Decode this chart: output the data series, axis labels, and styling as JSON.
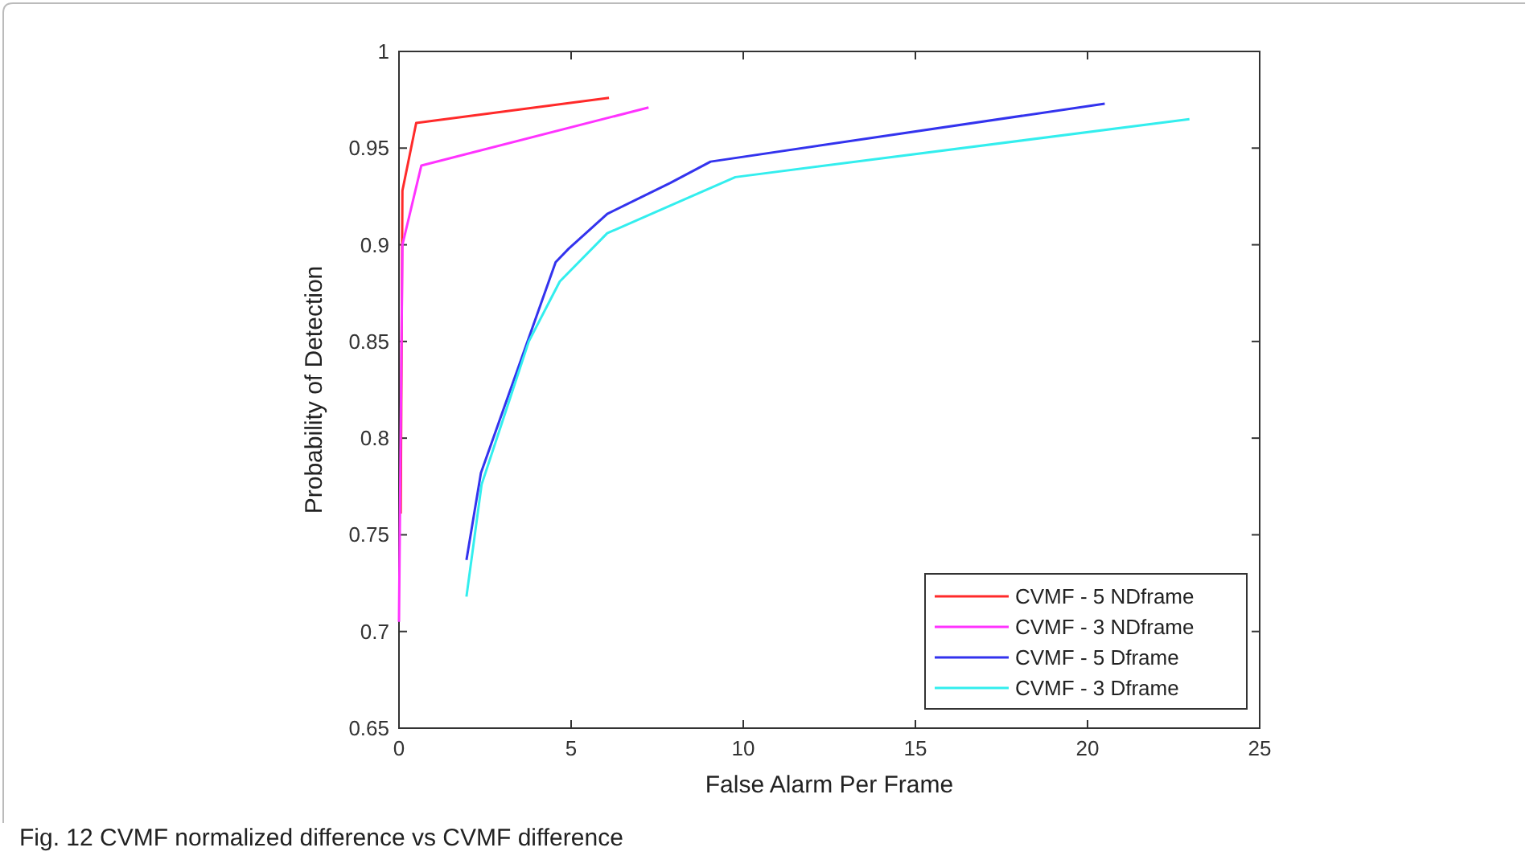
{
  "chart_data": {
    "type": "line",
    "xlabel": "False Alarm Per Frame",
    "ylabel": "Probability of Detection",
    "xlim": [
      0,
      25
    ],
    "ylim": [
      0.65,
      1
    ],
    "xticks": [
      0,
      5,
      10,
      15,
      20,
      25
    ],
    "yticks": [
      0.65,
      0.7,
      0.75,
      0.8,
      0.85,
      0.9,
      0.95,
      1
    ],
    "grid": false,
    "legend": "bottom right",
    "marker": "none",
    "line_style": "solid",
    "annotations": [
      "Fig. 12  CVMF normalized difference vs CVMF difference"
    ],
    "series": [
      {
        "name": "CVMF - 5 NDframe",
        "color": "#ff2a2a",
        "x": [
          0.05,
          0.1,
          0.5,
          6.1
        ],
        "values": [
          0.761,
          0.928,
          0.963,
          0.976
        ]
      },
      {
        "name": "CVMF - 3 NDframe",
        "color": "#ff33ff",
        "x": [
          0,
          0.1,
          0.65,
          7.25
        ],
        "values": [
          0.705,
          0.9,
          0.941,
          0.971
        ]
      },
      {
        "name": "CVMF - 5 Dframe",
        "color": "#3333ee",
        "x": [
          1.96,
          2.38,
          4.55,
          4.93,
          6.05,
          7.88,
          9.05,
          20.5
        ],
        "values": [
          0.737,
          0.782,
          0.891,
          0.898,
          0.916,
          0.932,
          0.943,
          0.973
        ]
      },
      {
        "name": "CVMF - 3 Dframe",
        "color": "#33eeee",
        "x": [
          1.96,
          2.4,
          3.77,
          4.67,
          6.05,
          9.77,
          22.96
        ],
        "values": [
          0.718,
          0.776,
          0.85,
          0.881,
          0.906,
          0.935,
          0.965
        ]
      }
    ]
  }
}
